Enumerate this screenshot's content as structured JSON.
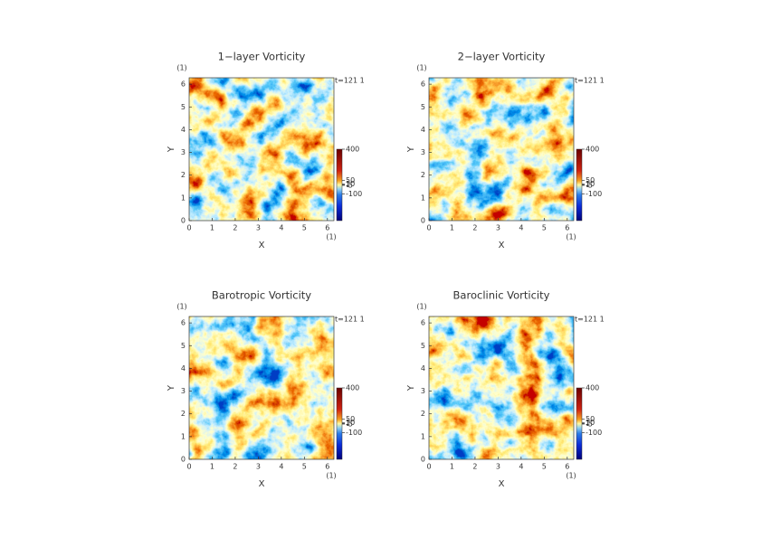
{
  "chart_data": [
    {
      "type": "heatmap",
      "title": "1−layer Vorticity",
      "xlabel": "X",
      "ylabel": "Y",
      "x_unit": "(1)",
      "y_unit": "(1)",
      "annotation": "t=121 1",
      "xlim": [
        0,
        6.283
      ],
      "ylim": [
        0,
        6.283
      ],
      "xticks": [
        0,
        1,
        2,
        3,
        4,
        5,
        6
      ],
      "yticks": [
        0,
        1,
        2,
        3,
        4,
        5,
        6
      ],
      "clim": [
        -400,
        400
      ],
      "cticks": [
        -100,
        -5,
        1,
        10,
        50,
        400
      ]
    },
    {
      "type": "heatmap",
      "title": "2−layer Vorticity",
      "xlabel": "X",
      "ylabel": "Y",
      "x_unit": "(1)",
      "y_unit": "(1)",
      "annotation": "t=121 1",
      "xlim": [
        0,
        6.283
      ],
      "ylim": [
        0,
        6.283
      ],
      "xticks": [
        0,
        1,
        2,
        3,
        4,
        5,
        6
      ],
      "yticks": [
        0,
        1,
        2,
        3,
        4,
        5,
        6
      ],
      "clim": [
        -400,
        400
      ],
      "cticks": [
        -100,
        -5,
        1,
        10,
        50,
        400
      ]
    },
    {
      "type": "heatmap",
      "title": "Barotropic Vorticity",
      "xlabel": "X",
      "ylabel": "Y",
      "x_unit": "(1)",
      "y_unit": "(1)",
      "annotation": "t=121 1",
      "xlim": [
        0,
        6.283
      ],
      "ylim": [
        0,
        6.283
      ],
      "xticks": [
        0,
        1,
        2,
        3,
        4,
        5,
        6
      ],
      "yticks": [
        0,
        1,
        2,
        3,
        4,
        5,
        6
      ],
      "clim": [
        -400,
        400
      ],
      "cticks": [
        -100,
        -5,
        1,
        10,
        50,
        400
      ]
    },
    {
      "type": "heatmap",
      "title": "Baroclinic Vorticity",
      "xlabel": "X",
      "ylabel": "Y",
      "x_unit": "(1)",
      "y_unit": "(1)",
      "annotation": "t=121 1",
      "xlim": [
        0,
        6.283
      ],
      "ylim": [
        0,
        6.283
      ],
      "xticks": [
        0,
        1,
        2,
        3,
        4,
        5,
        6
      ],
      "yticks": [
        0,
        1,
        2,
        3,
        4,
        5,
        6
      ],
      "clim": [
        -400,
        400
      ],
      "cticks": [
        -100,
        -5,
        1,
        10,
        50,
        400
      ]
    }
  ]
}
